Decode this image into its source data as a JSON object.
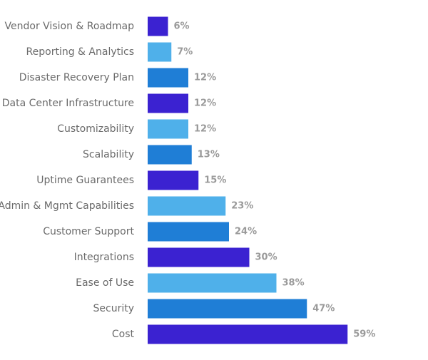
{
  "chart_data": {
    "type": "bar",
    "orientation": "horizontal",
    "title": "",
    "xlabel": "",
    "ylabel": "",
    "xlim": [
      0,
      100
    ],
    "grid": false,
    "legend": "none",
    "value_suffix": "%",
    "categories": [
      "Vendor Vision & Roadmap",
      "Reporting & Analytics",
      "Disaster Recovery Plan",
      "Data Center Infrastructure",
      "Customizability",
      "Scalability",
      "Uptime Guarantees",
      "Admin & Mgmt Capabilities",
      "Customer Support",
      "Integrations",
      "Ease of Use",
      "Security",
      "Cost"
    ],
    "values": [
      6,
      7,
      12,
      12,
      12,
      13,
      15,
      23,
      24,
      30,
      38,
      47,
      59
    ],
    "value_labels": [
      "6%",
      "7%",
      "12%",
      "12%",
      "12%",
      "13%",
      "15%",
      "23%",
      "24%",
      "30%",
      "38%",
      "47%",
      "59%"
    ],
    "colors": [
      "#3b22d1",
      "#4fb0ea",
      "#1f7ed6"
    ]
  }
}
